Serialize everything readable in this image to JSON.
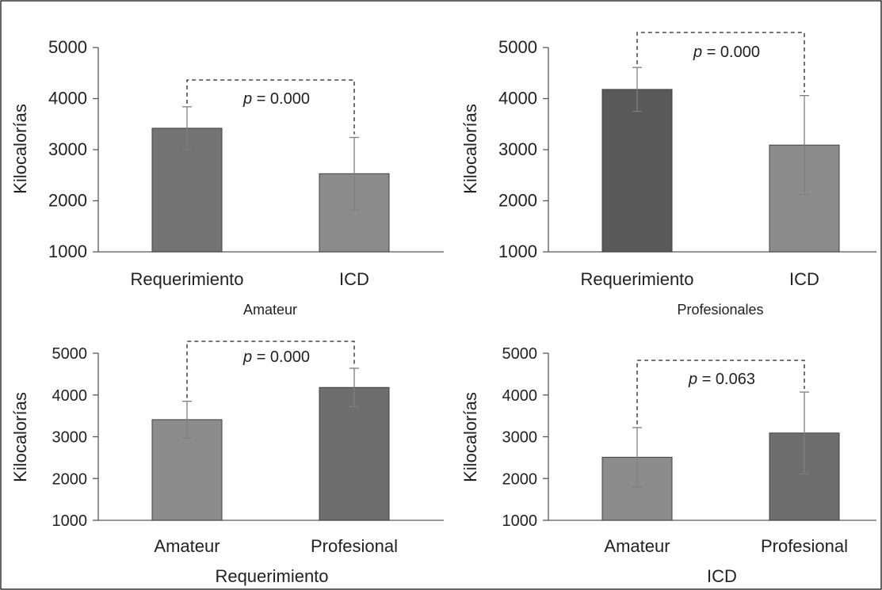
{
  "colors": {
    "frame": "#000000",
    "axis": "#595959",
    "error_bar": "#7f7f7f",
    "bracket": "#222222",
    "bar_dark": "#595959",
    "bar_medium": "#7f7f7f",
    "bar_light": "#8c8c8c",
    "bar_outline": "#404040"
  },
  "chart_data": [
    {
      "type": "bar",
      "title": "Amateur",
      "xlabel": "Amateur",
      "ylabel": "Kilocalorías",
      "ylim": [
        1000,
        5000
      ],
      "yticks": [
        "5000",
        "4000",
        "3000",
        "2000",
        "1000"
      ],
      "categories": [
        "Requerimiento",
        "ICD"
      ],
      "values": [
        3420,
        2530
      ],
      "errors": [
        420,
        710
      ],
      "bar_colors": [
        "#737373",
        "#8c8c8c"
      ],
      "annotation": {
        "text": "= 0.000",
        "italic_prefix": "p",
        "bracket_from": 0,
        "bracket_to": 1
      }
    },
    {
      "type": "bar",
      "title": "Profesionales",
      "xlabel": "Profesionales",
      "ylabel": "Kilocalorías",
      "ylim": [
        1000,
        5000
      ],
      "yticks": [
        "5000",
        "4000",
        "3000",
        "2000",
        "1000"
      ],
      "categories": [
        "Requerimiento",
        "ICD"
      ],
      "values": [
        4180,
        3090
      ],
      "errors": [
        430,
        970
      ],
      "bar_colors": [
        "#595959",
        "#8c8c8c"
      ],
      "annotation": {
        "text": "= 0.000",
        "italic_prefix": "p",
        "bracket_from": 0,
        "bracket_to": 1
      }
    },
    {
      "type": "bar",
      "title": "Requerimiento",
      "xlabel": "Requerimiento",
      "ylabel": "Kilocalorías",
      "ylim": [
        1000,
        5000
      ],
      "yticks": [
        "5000",
        "4000",
        "3000",
        "2000",
        "1000"
      ],
      "categories": [
        "Amateur",
        "Profesional"
      ],
      "values": [
        3410,
        4180
      ],
      "errors": [
        440,
        460
      ],
      "bar_colors": [
        "#8c8c8c",
        "#6e6e6e"
      ],
      "annotation": {
        "text": "= 0.000",
        "italic_prefix": "p",
        "bracket_from": 0,
        "bracket_to": 1
      }
    },
    {
      "type": "bar",
      "title": "ICD",
      "xlabel": "ICD",
      "ylabel": "Kilocalorías",
      "ylim": [
        1000,
        5000
      ],
      "yticks": [
        "5000",
        "4000",
        "3000",
        "2000",
        "1000"
      ],
      "categories": [
        "Amateur",
        "Profesional"
      ],
      "values": [
        2510,
        3090
      ],
      "errors": [
        710,
        980
      ],
      "bar_colors": [
        "#8c8c8c",
        "#6e6e6e"
      ],
      "annotation": {
        "text": "= 0.063",
        "italic_prefix": "p",
        "bracket_from": 0,
        "bracket_to": 1
      }
    }
  ]
}
